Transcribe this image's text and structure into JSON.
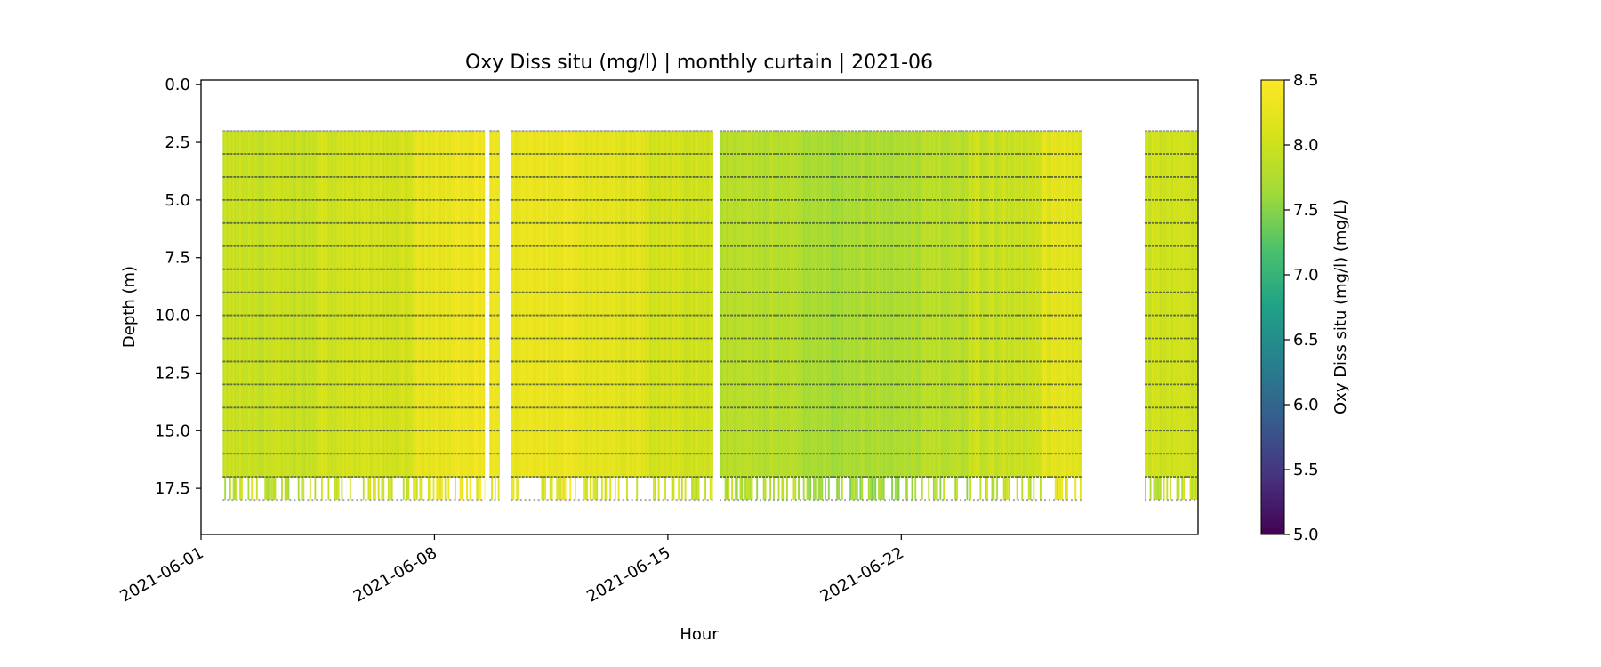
{
  "chart_data": {
    "type": "heatmap",
    "title": "Oxy Diss situ (mg/l) | monthly curtain | 2021-06",
    "xlabel": "Hour",
    "ylabel": "Depth (m)",
    "x_ticks": [
      "2021-06-01",
      "2021-06-08",
      "2021-06-15",
      "2021-06-22"
    ],
    "x_tick_days": [
      0,
      7,
      14,
      21
    ],
    "xlim_days": [
      0,
      29.9
    ],
    "y_ticks": [
      0.0,
      2.5,
      5.0,
      7.5,
      10.0,
      12.5,
      15.0,
      17.5
    ],
    "y_tick_labels": [
      "0.0",
      "2.5",
      "5.0",
      "7.5",
      "10.0",
      "12.5",
      "15.0",
      "17.5"
    ],
    "ylim": [
      19.5,
      -0.2
    ],
    "y_inverted": true,
    "sample_depths_m": [
      2,
      3,
      4,
      5,
      6,
      7,
      8,
      9,
      10,
      11,
      12,
      13,
      14,
      15,
      16,
      17,
      18
    ],
    "colorbar": {
      "label": "Oxy Diss situ (mg/l) (mg/L)",
      "min": 5.0,
      "max": 8.5,
      "ticks": [
        "5.0",
        "5.5",
        "6.0",
        "6.5",
        "7.0",
        "7.5",
        "8.0",
        "8.5"
      ],
      "tick_values": [
        5.0,
        5.5,
        6.0,
        6.5,
        7.0,
        7.5,
        8.0,
        8.5
      ],
      "colormap": "viridis"
    },
    "data_segments_days": [
      [
        0.65,
        8.5
      ],
      [
        8.65,
        8.95
      ],
      [
        9.3,
        15.35
      ],
      [
        15.55,
        26.4
      ],
      [
        28.3,
        29.9
      ]
    ],
    "depth_weekly_means": [
      {
        "start_day": 0.65,
        "end_day": 3.5,
        "value": 7.95
      },
      {
        "start_day": 3.5,
        "end_day": 6.3,
        "value": 8.05
      },
      {
        "start_day": 6.3,
        "end_day": 7.5,
        "value": 8.25
      },
      {
        "start_day": 7.5,
        "end_day": 8.95,
        "value": 8.35
      },
      {
        "start_day": 9.3,
        "end_day": 11.5,
        "value": 8.3
      },
      {
        "start_day": 11.5,
        "end_day": 13.3,
        "value": 8.2
      },
      {
        "start_day": 13.3,
        "end_day": 15.35,
        "value": 8.05
      },
      {
        "start_day": 15.55,
        "end_day": 18.0,
        "value": 7.8
      },
      {
        "start_day": 18.0,
        "end_day": 21.0,
        "value": 7.7
      },
      {
        "start_day": 21.0,
        "end_day": 23.0,
        "value": 7.8
      },
      {
        "start_day": 23.0,
        "end_day": 25.2,
        "value": 7.95
      },
      {
        "start_day": 25.2,
        "end_day": 26.4,
        "value": 8.2
      },
      {
        "start_day": 28.3,
        "end_day": 29.9,
        "value": 8.0
      }
    ]
  }
}
